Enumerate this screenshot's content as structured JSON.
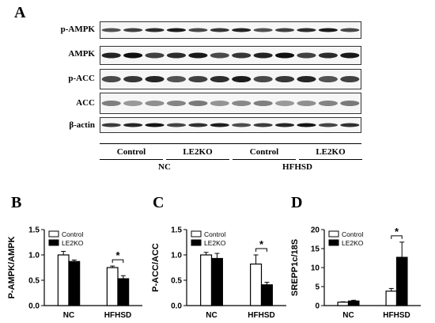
{
  "figure": {
    "panel_a": {
      "letter": "A",
      "blots": [
        {
          "label": "p-AMPK",
          "band_shade": "#1a1a1a",
          "band_height": 5
        },
        {
          "label": "AMPK",
          "band_shade": "#101010",
          "band_height": 7
        },
        {
          "label": "p-ACC",
          "band_shade": "#1c1c1c",
          "band_height": 8
        },
        {
          "label": "ACC",
          "band_shade": "#7a7a7a",
          "band_height": 7
        },
        {
          "label": "β-actin",
          "band_shade": "#141414",
          "band_height": 5
        }
      ],
      "groups": [
        "Control",
        "LE2KO",
        "Control",
        "LE2KO"
      ],
      "conditions": [
        "NC",
        "HFHSD"
      ]
    },
    "panel_b": {
      "letter": "B"
    },
    "panel_c": {
      "letter": "C"
    },
    "panel_d": {
      "letter": "D"
    }
  },
  "chart_data": [
    {
      "type": "bar",
      "ylabel": "P-AMPK/AMPK",
      "categories": [
        "NC",
        "HFHSD"
      ],
      "ylim": [
        0,
        1.5
      ],
      "yticks": [
        "0.0",
        "0.5",
        "1.0",
        "1.5"
      ],
      "series": [
        {
          "name": "Control",
          "values": [
            1.0,
            0.75
          ],
          "errors": [
            0.07,
            0.03
          ],
          "color": "#ffffff"
        },
        {
          "name": "LE2KO",
          "values": [
            0.87,
            0.53
          ],
          "errors": [
            0.03,
            0.06
          ],
          "color": "#000000"
        }
      ],
      "significance": [
        {
          "category": 1,
          "label": "*"
        }
      ],
      "legend_position": "top-left"
    },
    {
      "type": "bar",
      "ylabel": "P-ACC/ACC",
      "categories": [
        "NC",
        "HFHSD"
      ],
      "ylim": [
        0,
        1.5
      ],
      "yticks": [
        "0.0",
        "0.5",
        "1.0",
        "1.5"
      ],
      "series": [
        {
          "name": "Control",
          "values": [
            1.0,
            0.82
          ],
          "errors": [
            0.05,
            0.18
          ],
          "color": "#ffffff"
        },
        {
          "name": "LE2KO",
          "values": [
            0.93,
            0.41
          ],
          "errors": [
            0.1,
            0.05
          ],
          "color": "#000000"
        }
      ],
      "significance": [
        {
          "category": 1,
          "label": "*"
        }
      ],
      "legend_position": "top-left"
    },
    {
      "type": "bar",
      "ylabel": "SREPP1c/18S",
      "categories": [
        "NC",
        "HFHSD"
      ],
      "ylim": [
        0,
        20
      ],
      "yticks": [
        "0",
        "5",
        "10",
        "15",
        "20"
      ],
      "series": [
        {
          "name": "Control",
          "values": [
            0.9,
            3.8
          ],
          "errors": [
            0.1,
            0.7
          ],
          "color": "#ffffff"
        },
        {
          "name": "LE2KO",
          "values": [
            1.2,
            12.7
          ],
          "errors": [
            0.2,
            4.0
          ],
          "color": "#000000"
        }
      ],
      "significance": [
        {
          "category": 1,
          "label": "*"
        }
      ],
      "legend_position": "top-left"
    }
  ]
}
